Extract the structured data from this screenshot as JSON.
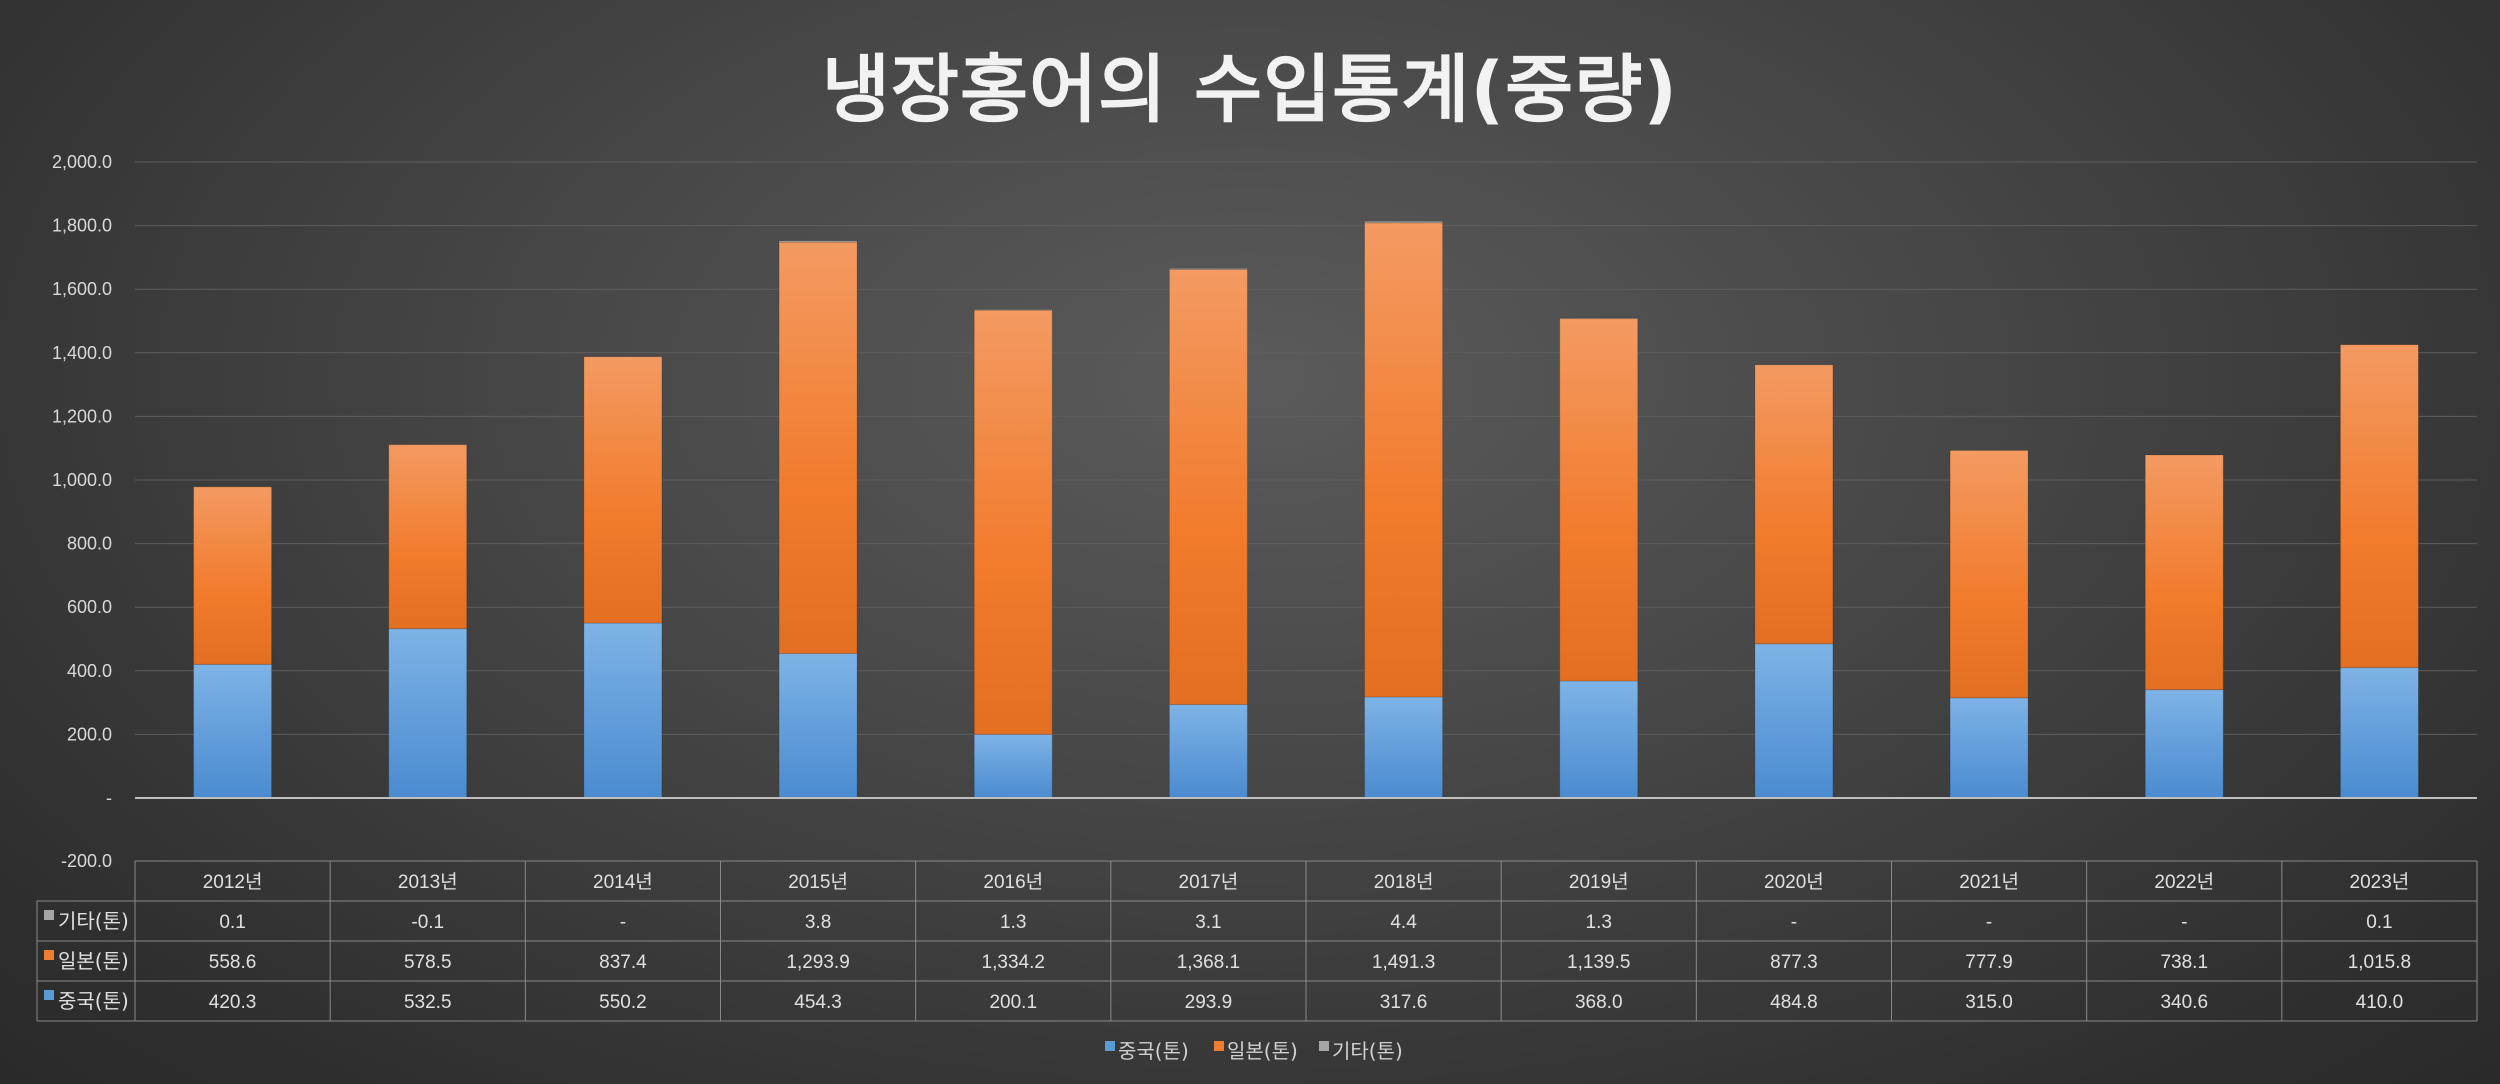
{
  "chart_data": {
    "type": "bar",
    "stacked": true,
    "title": "냉장홍어의 수입통계(중량)",
    "categories": [
      "2012년",
      "2013년",
      "2014년",
      "2015년",
      "2016년",
      "2017년",
      "2018년",
      "2019년",
      "2020년",
      "2021년",
      "2022년",
      "2023년"
    ],
    "series": [
      {
        "name": "중국(톤)",
        "color": "#5b9bd5",
        "values": [
          420.3,
          532.5,
          550.2,
          454.3,
          200.1,
          293.9,
          317.6,
          368.0,
          484.8,
          315.0,
          340.6,
          410.0
        ],
        "labels": [
          "420.3",
          "532.5",
          "550.2",
          "454.3",
          "200.1",
          "293.9",
          "317.6",
          "368.0",
          "484.8",
          "315.0",
          "340.6",
          "410.0"
        ]
      },
      {
        "name": "일본(톤)",
        "color": "#ed7d31",
        "values": [
          558.6,
          578.5,
          837.4,
          1293.9,
          1334.2,
          1368.1,
          1491.3,
          1139.5,
          877.3,
          777.9,
          738.1,
          1015.8
        ],
        "labels": [
          "558.6",
          "578.5",
          "837.4",
          "1,293.9",
          "1,334.2",
          "1,368.1",
          "1,491.3",
          "1,139.5",
          "877.3",
          "777.9",
          "738.1",
          "1,015.8"
        ]
      },
      {
        "name": "기타(톤)",
        "color": "#a5a5a5",
        "values": [
          0.1,
          -0.1,
          0,
          3.8,
          1.3,
          3.1,
          4.4,
          1.3,
          0,
          0,
          0,
          0.1
        ],
        "labels": [
          "0.1",
          "-0.1",
          "-",
          "3.8",
          "1.3",
          "3.1",
          "4.4",
          "1.3",
          "-",
          "-",
          "-",
          "0.1"
        ]
      }
    ],
    "ylim": [
      -200,
      2000
    ],
    "yticks": [
      2000,
      1800,
      1600,
      1400,
      1200,
      1000,
      800,
      600,
      400,
      200,
      0,
      -200
    ],
    "ytick_labels": [
      "2,000.0",
      "1,800.0",
      "1,600.0",
      "1,400.0",
      "1,200.0",
      "1,000.0",
      "800.0",
      "600.0",
      "400.0",
      "200.0",
      "-",
      "-200.0"
    ],
    "data_table": true,
    "table_row_order": [
      "기타(톤)",
      "일본(톤)",
      "중국(톤)"
    ],
    "legend_position": "bottom",
    "grid": true
  }
}
